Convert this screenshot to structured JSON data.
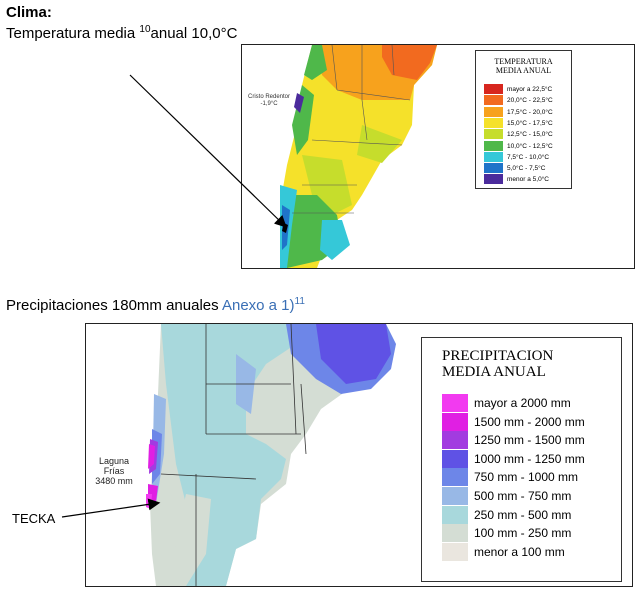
{
  "heading": "Clima:",
  "temperature": {
    "text_before": "Temperatura media ",
    "superscript": "10",
    "text_after": "anual 10,0°C"
  },
  "precipitation": {
    "text": "Precipitaciones 180mm anuales ",
    "link": "Anexo a 1)",
    "superscript": "11"
  },
  "temp_map": {
    "legend_title_1": "TEMPERATURA",
    "legend_title_2": "MEDIA ANUAL",
    "legend": [
      {
        "label": "mayor a 22,5°C",
        "color": "#d7261e"
      },
      {
        "label": "20,0°C - 22,5°C",
        "color": "#f26a1f"
      },
      {
        "label": "17,5°C - 20,0°C",
        "color": "#f7a21d"
      },
      {
        "label": "15,0°C - 17,5°C",
        "color": "#f5e12a"
      },
      {
        "label": "12,5°C - 15,0°C",
        "color": "#c6dd2c"
      },
      {
        "label": "10,0°C - 12,5°C",
        "color": "#4fb84a"
      },
      {
        "label": "7,5°C - 10,0°C",
        "color": "#35c8d8"
      },
      {
        "label": "5,0°C - 7,5°C",
        "color": "#1f74c9"
      },
      {
        "label": "menor a 5,0°C",
        "color": "#4b2b9c"
      }
    ],
    "station_name": "Cristo Redentor",
    "station_value": "-1,9°C"
  },
  "precip_map": {
    "legend_title_1": "PRECIPITACION",
    "legend_title_2": "MEDIA ANUAL",
    "legend": [
      {
        "label": "mayor a 2000 mm",
        "color": "#f23af0"
      },
      {
        "label": "1500 mm - 2000 mm",
        "color": "#e01fe3"
      },
      {
        "label": "1250 mm - 1500 mm",
        "color": "#a23be0"
      },
      {
        "label": "1000 mm - 1250 mm",
        "color": "#5f52e5"
      },
      {
        "label": "750 mm - 1000 mm",
        "color": "#6d86e8"
      },
      {
        "label": "500 mm - 750 mm",
        "color": "#98b8e6"
      },
      {
        "label": "250 mm - 500 mm",
        "color": "#a8d8dc"
      },
      {
        "label": "100 mm - 250 mm",
        "color": "#d4ddd4"
      },
      {
        "label": "menor a 100 mm",
        "color": "#eae6df"
      }
    ],
    "station_name": "Laguna Frías",
    "station_value": "3480 mm"
  },
  "tecka_label": "TECKA"
}
